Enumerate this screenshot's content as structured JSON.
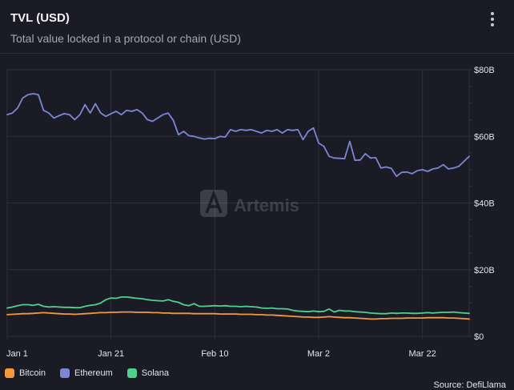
{
  "header": {
    "title": "TVL (USD)",
    "subtitle": "Total value locked in a protocol or chain (USD)"
  },
  "watermark": "Artemis",
  "source": "Source: DefiLlama",
  "colors": {
    "background": "#1b1b26",
    "grid": "#2f2f3c",
    "axis_text": "#e4e4ea"
  },
  "chart_data": {
    "type": "line",
    "title": "TVL (USD)",
    "xlabel": "",
    "ylabel": "",
    "ylim": [
      0,
      80
    ],
    "y_unit": "B USD",
    "yticks": [
      {
        "value": 0,
        "label": "$0"
      },
      {
        "value": 20,
        "label": "$20B"
      },
      {
        "value": 40,
        "label": "$40B"
      },
      {
        "value": 60,
        "label": "$60B"
      },
      {
        "value": 80,
        "label": "$80B"
      }
    ],
    "xticks": [
      {
        "index": 0,
        "label": "Jan 1"
      },
      {
        "index": 20,
        "label": "Jan 21"
      },
      {
        "index": 40,
        "label": "Feb 10"
      },
      {
        "index": 60,
        "label": "Mar 2"
      },
      {
        "index": 80,
        "label": "Mar 22"
      }
    ],
    "x_count": 90,
    "legend_position": "bottom-left",
    "series": [
      {
        "name": "Bitcoin",
        "color": "#f39a37",
        "values": [
          6.5,
          6.6,
          6.7,
          6.8,
          6.8,
          6.9,
          7.0,
          7.1,
          7.0,
          6.9,
          6.8,
          6.7,
          6.7,
          6.6,
          6.7,
          6.8,
          6.9,
          7.0,
          7.1,
          7.1,
          7.2,
          7.2,
          7.3,
          7.3,
          7.3,
          7.2,
          7.2,
          7.2,
          7.1,
          7.1,
          7.0,
          7.0,
          6.9,
          6.9,
          6.9,
          6.9,
          6.8,
          6.8,
          6.8,
          6.8,
          6.8,
          6.7,
          6.7,
          6.7,
          6.7,
          6.6,
          6.6,
          6.6,
          6.5,
          6.5,
          6.4,
          6.4,
          6.3,
          6.2,
          6.1,
          6.0,
          5.9,
          5.8,
          5.8,
          5.7,
          5.7,
          5.8,
          5.9,
          5.8,
          5.7,
          5.6,
          5.6,
          5.5,
          5.4,
          5.3,
          5.2,
          5.2,
          5.3,
          5.3,
          5.4,
          5.4,
          5.4,
          5.5,
          5.5,
          5.5,
          5.5,
          5.6,
          5.6,
          5.6,
          5.6,
          5.5,
          5.5,
          5.4,
          5.3,
          5.2
        ]
      },
      {
        "name": "Ethereum",
        "color": "#7c86d4",
        "values": [
          66.5,
          67.0,
          68.5,
          71.5,
          72.5,
          72.8,
          72.5,
          67.8,
          67.0,
          65.5,
          66.2,
          66.8,
          66.5,
          65.0,
          66.5,
          69.5,
          67.0,
          69.8,
          67.0,
          66.0,
          66.8,
          67.5,
          66.5,
          67.8,
          67.5,
          68.0,
          67.0,
          65.0,
          64.5,
          65.5,
          66.5,
          67.0,
          64.8,
          60.5,
          61.5,
          60.2,
          60.0,
          59.5,
          59.2,
          59.4,
          59.3,
          60.0,
          59.8,
          62.0,
          61.5,
          62.0,
          61.8,
          62.0,
          61.5,
          61.0,
          61.8,
          61.5,
          62.0,
          61.0,
          62.0,
          61.8,
          62.0,
          59.0,
          61.5,
          62.5,
          58.0,
          57.0,
          54.0,
          53.5,
          53.4,
          53.3,
          58.5,
          52.8,
          52.9,
          54.8,
          53.5,
          53.6,
          50.5,
          50.8,
          50.4,
          48.0,
          49.2,
          49.3,
          48.8,
          49.7,
          50.0,
          49.5,
          50.2,
          50.5,
          51.5,
          50.2,
          50.5,
          51.0,
          52.5,
          54.0
        ]
      },
      {
        "name": "Solana",
        "color": "#4fd08f",
        "values": [
          8.5,
          8.8,
          9.2,
          9.5,
          9.5,
          9.3,
          9.6,
          9.0,
          8.8,
          8.9,
          8.8,
          8.7,
          8.7,
          8.6,
          8.6,
          9.0,
          9.3,
          9.5,
          10.0,
          11.0,
          11.5,
          11.4,
          11.8,
          11.8,
          11.6,
          11.4,
          11.3,
          11.0,
          10.8,
          10.7,
          10.6,
          11.0,
          10.5,
          10.2,
          9.5,
          9.2,
          9.8,
          9.0,
          9.0,
          9.1,
          9.2,
          9.1,
          9.2,
          9.0,
          9.0,
          8.9,
          9.0,
          8.9,
          8.8,
          8.5,
          8.4,
          8.5,
          8.3,
          8.3,
          8.2,
          7.8,
          7.6,
          7.5,
          7.4,
          7.6,
          7.4,
          7.5,
          8.2,
          7.3,
          7.8,
          7.6,
          7.6,
          7.4,
          7.3,
          7.2,
          7.0,
          6.9,
          6.8,
          6.8,
          7.0,
          6.9,
          7.0,
          7.0,
          6.9,
          6.9,
          7.0,
          7.1,
          7.0,
          7.1,
          7.2,
          7.2,
          7.3,
          7.1,
          7.0,
          6.9
        ]
      }
    ]
  }
}
